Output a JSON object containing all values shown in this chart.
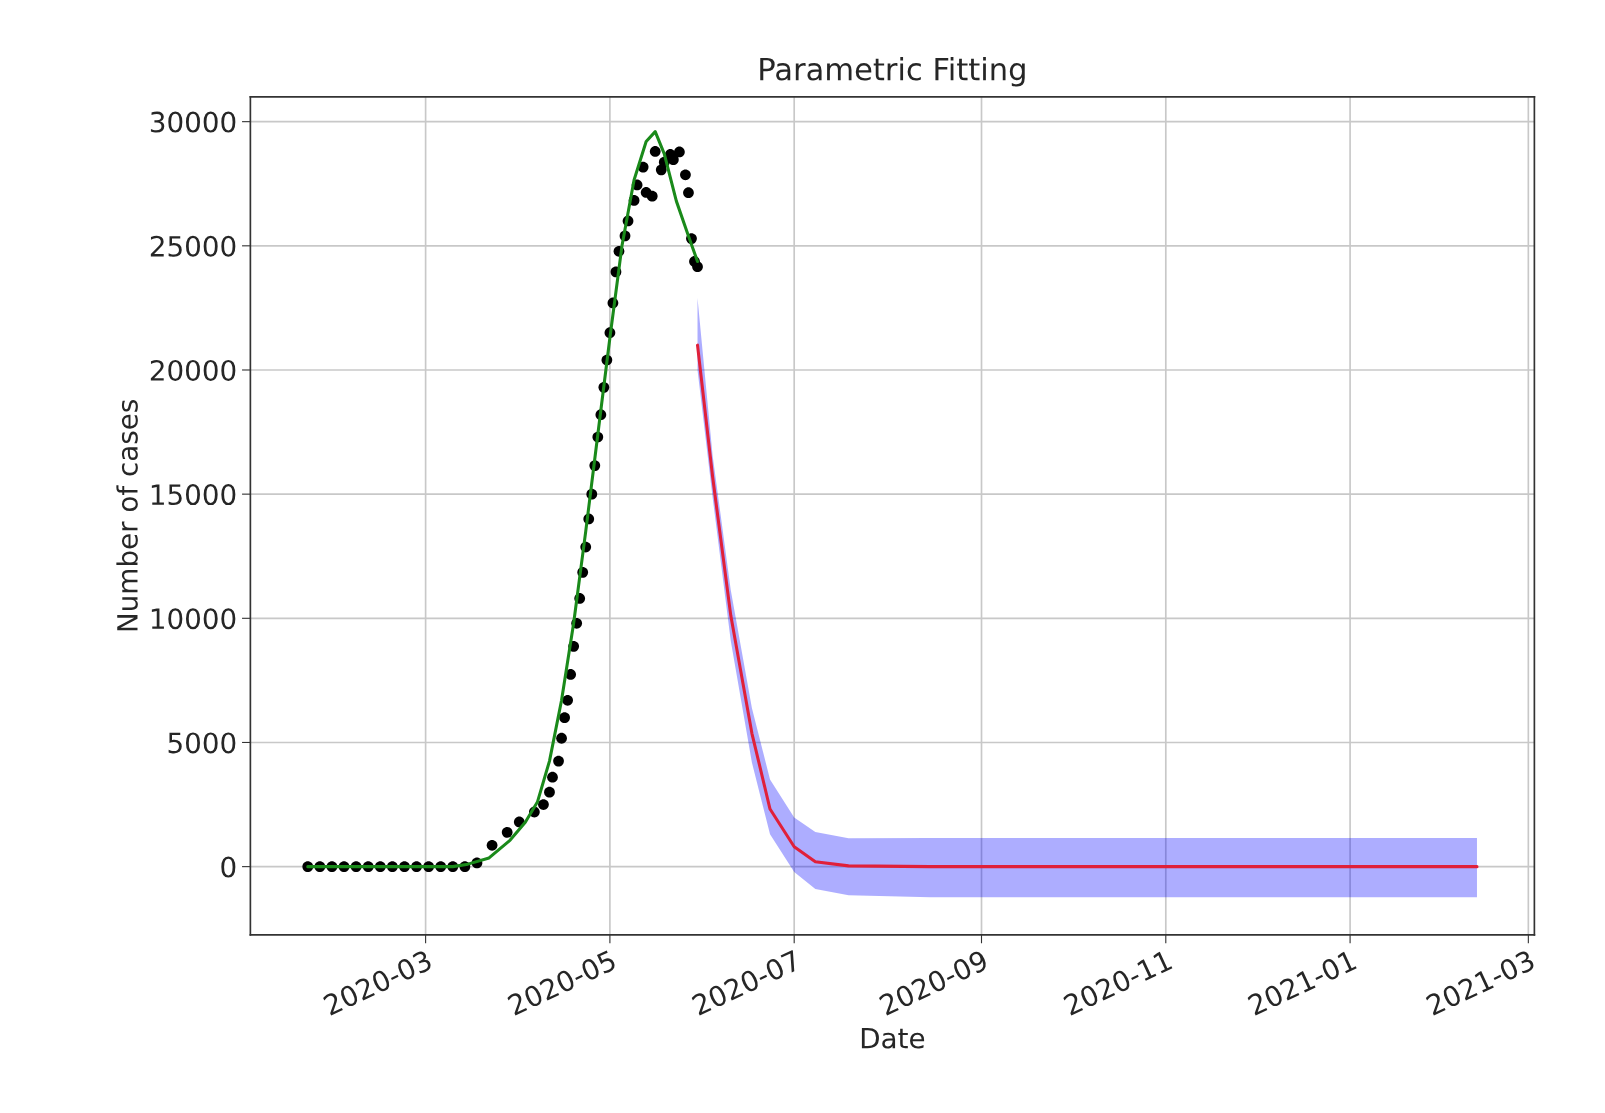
{
  "chart_data": {
    "type": "line",
    "title": "Parametric Fitting",
    "xlabel": "Date",
    "ylabel": "Number of cases",
    "xlim": [
      "2020-01-03",
      "2021-03-03"
    ],
    "xticks": [
      {
        "value": "2020-03-01",
        "label": "2020-03"
      },
      {
        "value": "2020-05-01",
        "label": "2020-05"
      },
      {
        "value": "2020-07-01",
        "label": "2020-07"
      },
      {
        "value": "2020-09-01",
        "label": "2020-09"
      },
      {
        "value": "2020-11-01",
        "label": "2020-11"
      },
      {
        "value": "2021-01-01",
        "label": "2021-01"
      },
      {
        "value": "2021-03-01",
        "label": "2021-03"
      }
    ],
    "ylim": [
      -2750,
      31000
    ],
    "yticks": [
      0,
      5000,
      10000,
      15000,
      20000,
      25000,
      30000
    ],
    "grid": true,
    "series": [
      {
        "type": "scatter",
        "marker": "circle",
        "color": "#000000",
        "x": [
          "2020-01-22",
          "2020-01-26",
          "2020-01-30",
          "2020-02-03",
          "2020-02-07",
          "2020-02-11",
          "2020-02-15",
          "2020-02-19",
          "2020-02-23",
          "2020-02-27",
          "2020-03-02",
          "2020-03-06",
          "2020-03-10",
          "2020-03-14",
          "2020-03-18",
          "2020-03-23",
          "2020-03-28",
          "2020-04-01",
          "2020-04-06",
          "2020-04-09",
          "2020-04-11",
          "2020-04-12",
          "2020-04-14",
          "2020-04-15",
          "2020-04-16",
          "2020-04-17",
          "2020-04-18",
          "2020-04-19",
          "2020-04-20",
          "2020-04-21",
          "2020-04-22",
          "2020-04-23",
          "2020-04-24",
          "2020-04-25",
          "2020-04-26",
          "2020-04-27",
          "2020-04-28",
          "2020-04-29",
          "2020-04-30",
          "2020-05-01",
          "2020-05-02",
          "2020-05-03",
          "2020-05-04",
          "2020-05-06",
          "2020-05-07",
          "2020-05-09",
          "2020-05-10",
          "2020-05-12",
          "2020-05-13",
          "2020-05-15",
          "2020-05-16",
          "2020-05-18",
          "2020-05-19",
          "2020-05-21",
          "2020-05-22",
          "2020-05-24",
          "2020-05-26",
          "2020-05-27",
          "2020-05-28",
          "2020-05-29",
          "2020-05-30"
        ],
        "values": [
          0,
          0,
          0,
          0,
          0,
          0,
          0,
          0,
          0,
          0,
          0,
          0,
          0,
          0,
          150,
          860,
          1380,
          1800,
          2200,
          2500,
          3000,
          3600,
          4250,
          5170,
          6000,
          6700,
          7740,
          8870,
          9800,
          10800,
          11850,
          12870,
          14000,
          15000,
          16150,
          17300,
          18200,
          19300,
          20400,
          21500,
          22700,
          23950,
          24780,
          25400,
          26000,
          26830,
          27450,
          28170,
          27150,
          27000,
          28800,
          28060,
          28370,
          28680,
          28470,
          28780,
          27860,
          27140,
          25290,
          24370,
          24160
        ]
      },
      {
        "color": "#1a8a1a",
        "x": [
          "2020-01-22",
          "2020-03-10",
          "2020-03-15",
          "2020-03-22",
          "2020-03-29",
          "2020-04-03",
          "2020-04-07",
          "2020-04-11",
          "2020-04-15",
          "2020-04-19",
          "2020-04-23",
          "2020-04-27",
          "2020-05-01",
          "2020-05-05",
          "2020-05-09",
          "2020-05-13",
          "2020-05-16",
          "2020-05-19",
          "2020-05-23",
          "2020-05-27",
          "2020-05-30"
        ],
        "values": [
          0,
          0,
          100,
          350,
          1070,
          1790,
          2600,
          4250,
          6700,
          9800,
          13500,
          17400,
          21300,
          25000,
          27650,
          29200,
          29600,
          28700,
          26800,
          25400,
          24370
        ]
      },
      {
        "color": "#e0203a",
        "x": [
          "2020-05-30",
          "2020-06-04",
          "2020-06-10",
          "2020-06-17",
          "2020-06-23",
          "2020-07-01",
          "2020-07-08",
          "2020-07-19",
          "2020-08-15",
          "2021-02-12"
        ],
        "values": [
          21000,
          15700,
          10120,
          5370,
          2320,
          800,
          200,
          30,
          0,
          0
        ],
        "lower": [
          20000,
          14870,
          9100,
          4190,
          1300,
          -220,
          -900,
          -1150,
          -1230,
          -1230
        ],
        "upper": [
          22900,
          16560,
          11140,
          6390,
          3510,
          1980,
          1390,
          1140,
          1150,
          1150
        ]
      }
    ]
  }
}
